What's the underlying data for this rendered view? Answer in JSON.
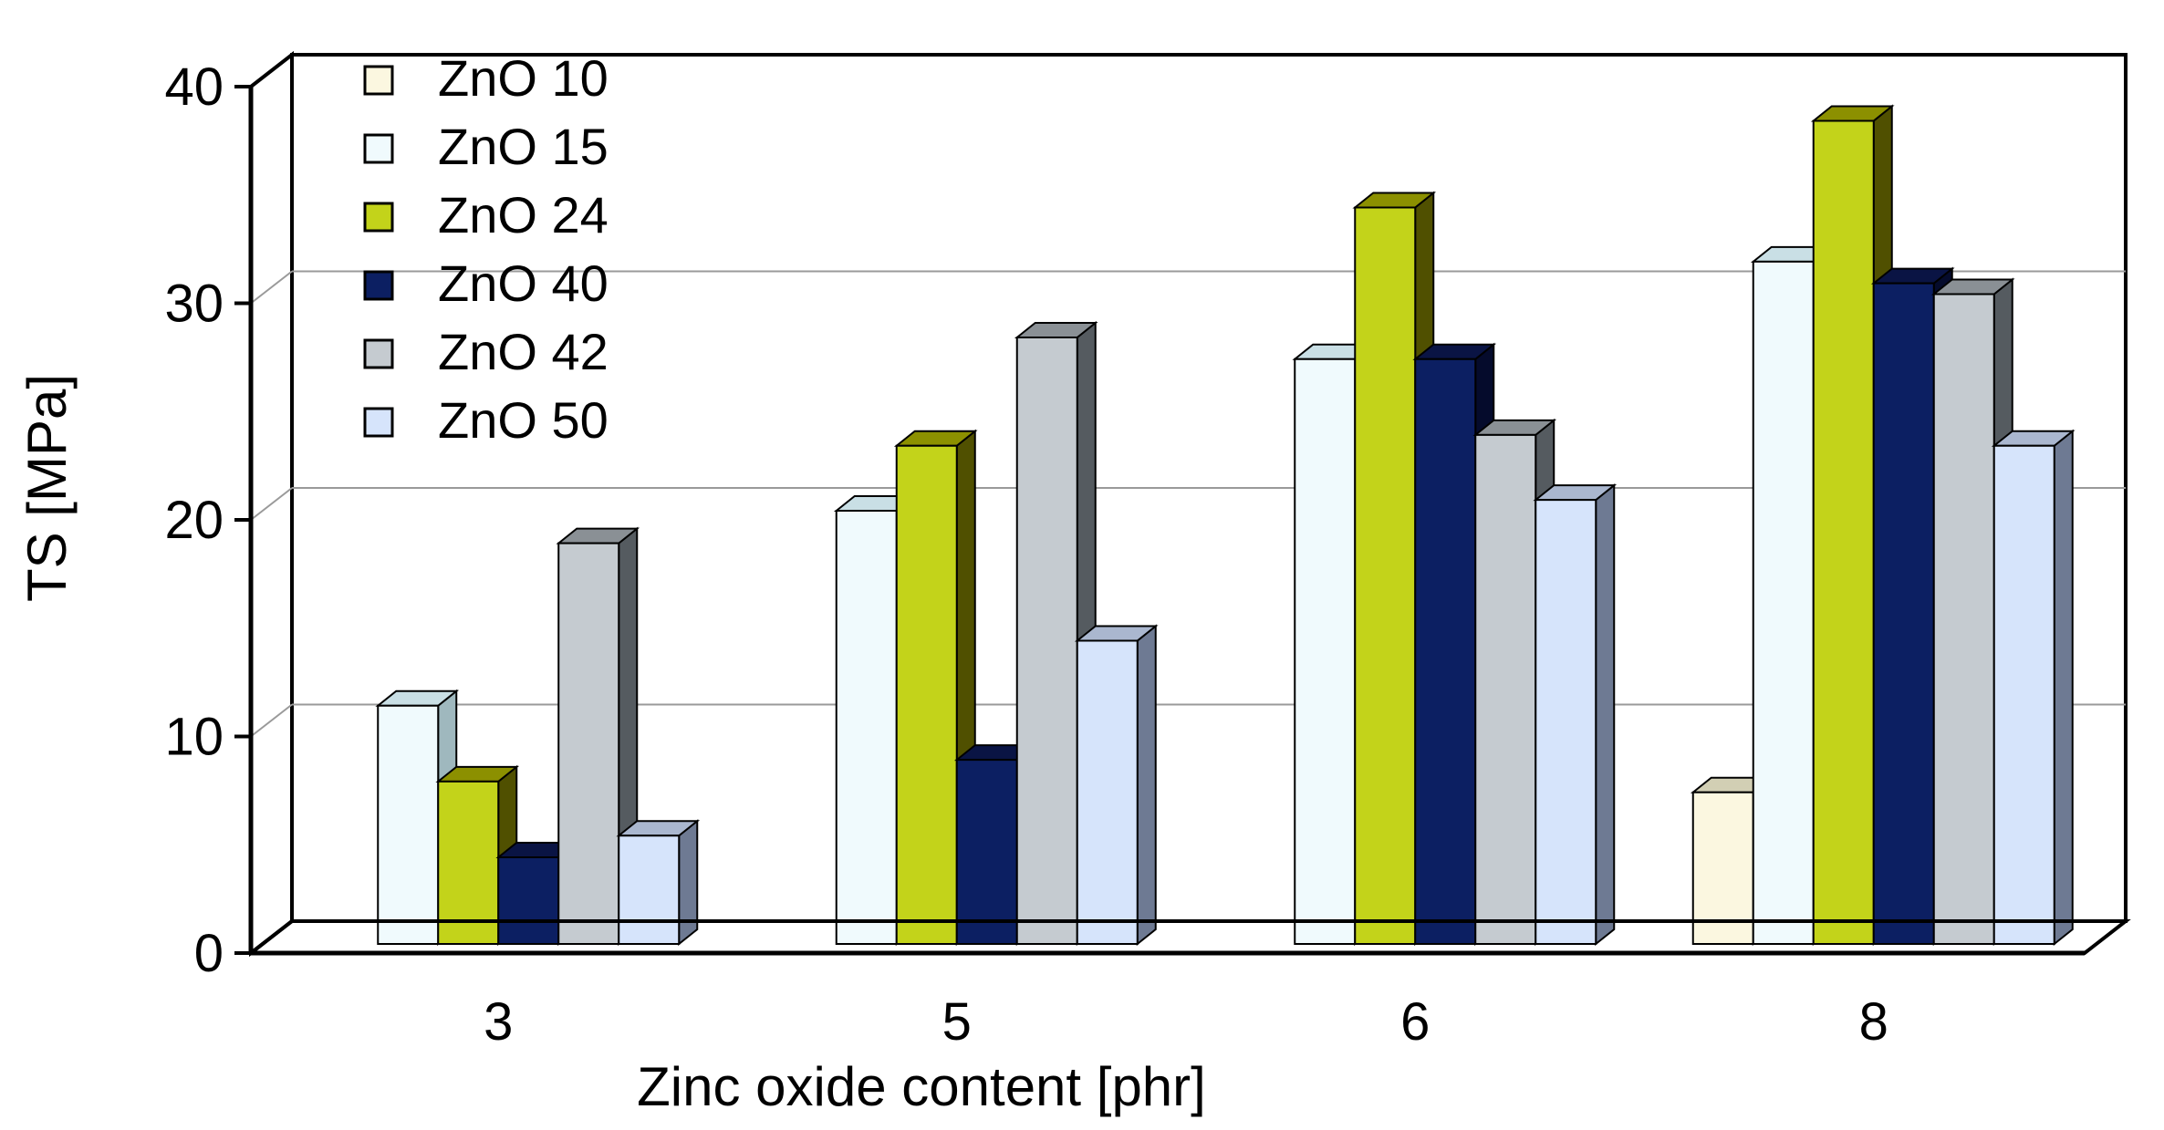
{
  "chart_data": {
    "type": "bar",
    "style": "3d-clustered",
    "categories": [
      "3",
      "5",
      "6",
      "8"
    ],
    "series": [
      {
        "name": "ZnO 10",
        "color": "#fbf7e0",
        "side": "#8a8770",
        "top": "#d2cfb4",
        "values": [
          null,
          null,
          null,
          7
        ]
      },
      {
        "name": "ZnO 15",
        "color": "#f0fafd",
        "side": "#9fb8be",
        "top": "#c9dfe5",
        "values": [
          11,
          20,
          27,
          31.5
        ]
      },
      {
        "name": "ZnO 24",
        "color": "#c3d31a",
        "side": "#505000",
        "top": "#8c9000",
        "values": [
          7.5,
          23,
          34,
          38
        ]
      },
      {
        "name": "ZnO 40",
        "color": "#0c1f62",
        "side": "#050b2c",
        "top": "#0a1444",
        "values": [
          4,
          8.5,
          27,
          30.5
        ]
      },
      {
        "name": "ZnO 42",
        "color": "#c5cbd0",
        "side": "#555b60",
        "top": "#8a9095",
        "values": [
          18.5,
          28,
          23.5,
          30
        ]
      },
      {
        "name": "ZnO 50",
        "color": "#d6e4fb",
        "side": "#6e7a93",
        "top": "#aab7cf",
        "values": [
          5,
          14,
          20.5,
          23
        ]
      }
    ],
    "ylabel": "TS [MPa]",
    "xlabel": "Zinc oxide content [phr]",
    "ylim": [
      0,
      40
    ],
    "yticks": [
      "0",
      "10",
      "20",
      "30",
      "40"
    ],
    "grid": true,
    "legend_position": "top-left"
  }
}
